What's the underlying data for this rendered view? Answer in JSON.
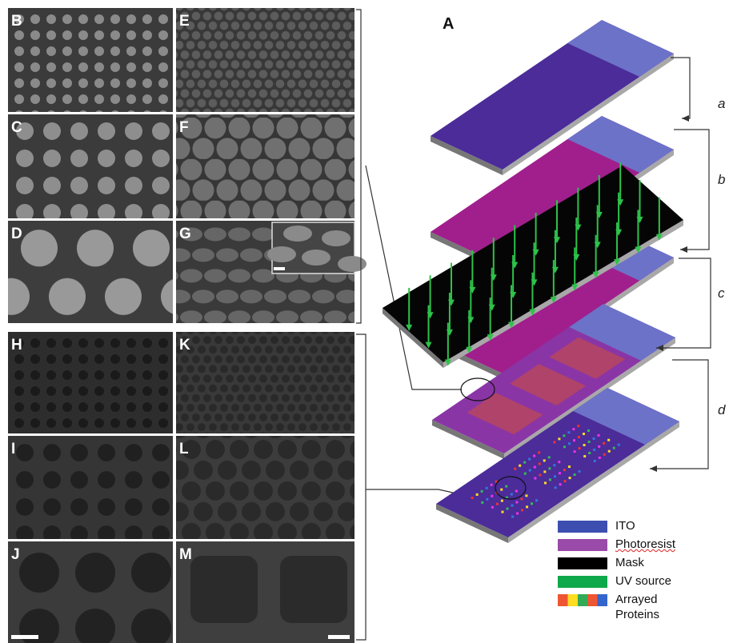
{
  "figure": {
    "diagram_label": "A",
    "panels": [
      "B",
      "E",
      "C",
      "F",
      "D",
      "G",
      "H",
      "K",
      "I",
      "L",
      "J",
      "M"
    ],
    "steps": [
      "a",
      "b",
      "c",
      "d"
    ],
    "legend": [
      "ITO",
      "Photoresist",
      "Mask",
      "UV source",
      "Arrayed Proteins"
    ]
  }
}
